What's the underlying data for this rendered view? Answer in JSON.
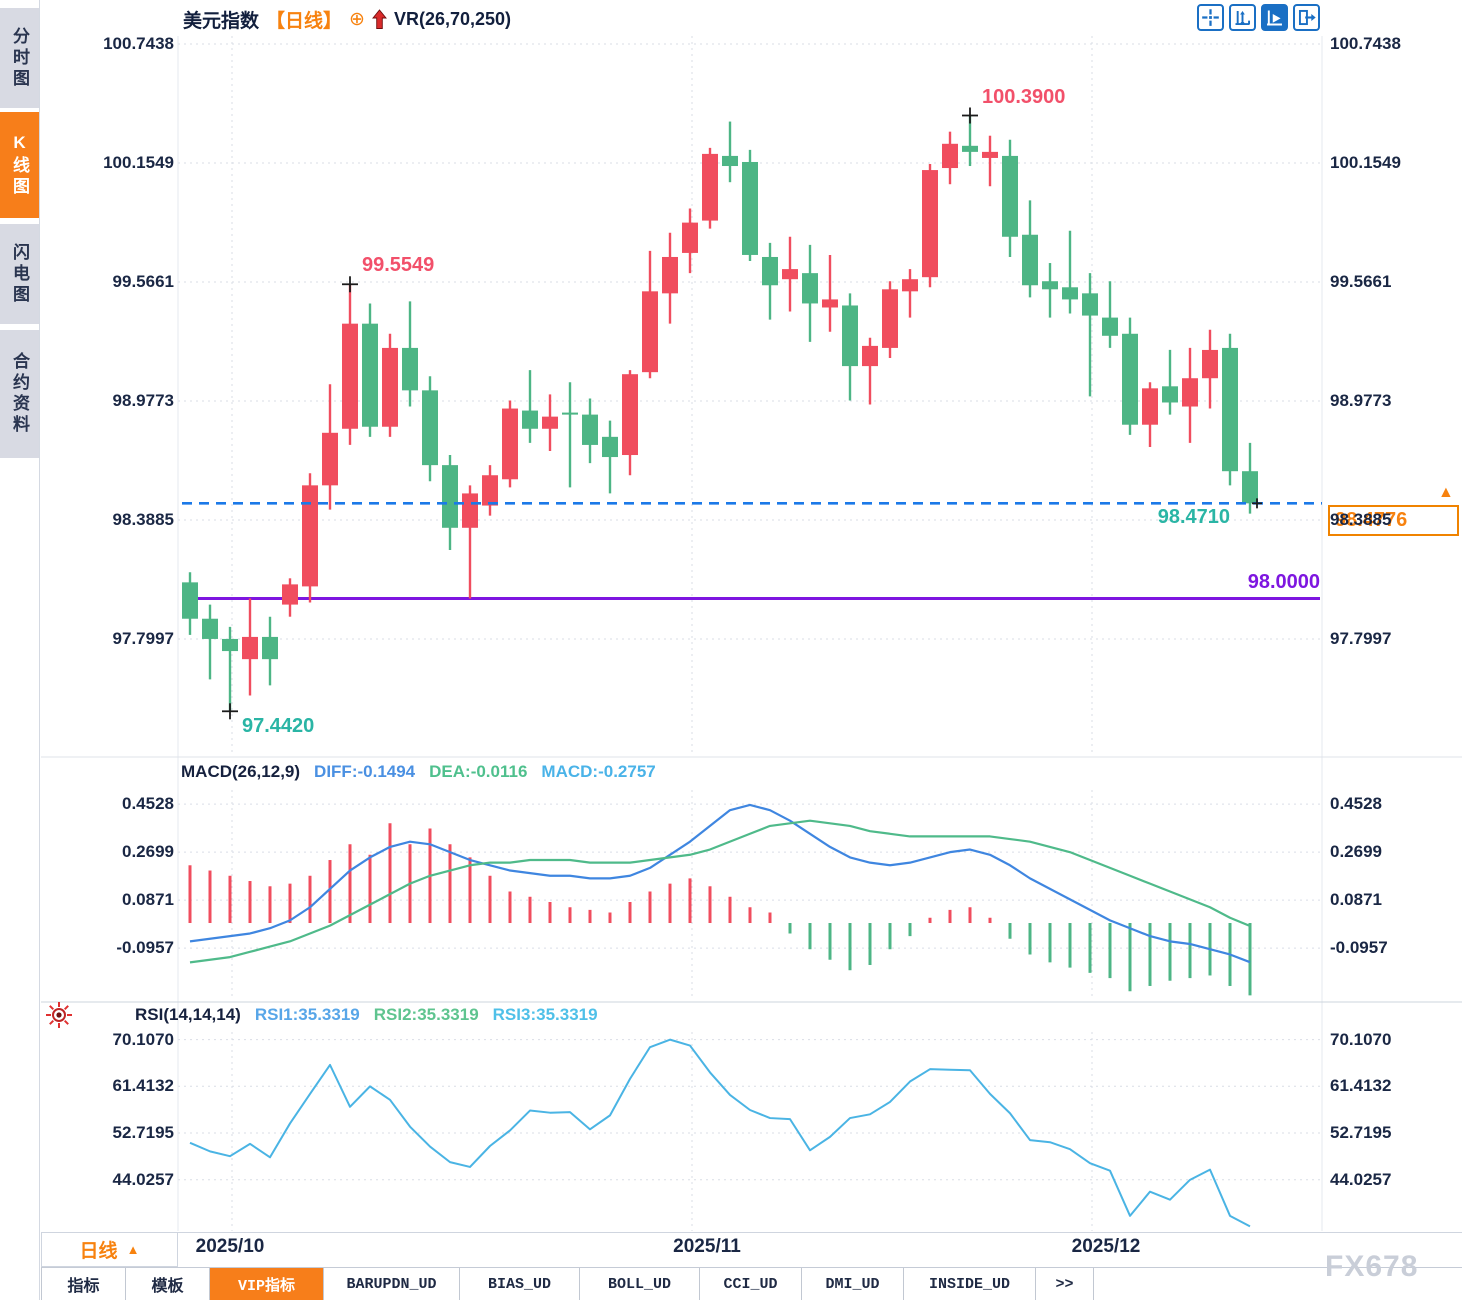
{
  "window": {
    "watermark": "FX678"
  },
  "sidebar": {
    "tabs": [
      {
        "label": "分时图",
        "active": false
      },
      {
        "label": "K线图",
        "active": true
      },
      {
        "label": "闪电图",
        "active": false
      },
      {
        "label": "合约资料",
        "active": false
      }
    ]
  },
  "header": {
    "symbol": "美元指数",
    "period": "【日线】",
    "overlay_indicator": "VR(26,70,250)"
  },
  "toolbar": {
    "icons": [
      "crosshair-move-icon",
      "axis-scale-icon",
      "pointer-axis-icon",
      "exit-panel-icon"
    ]
  },
  "current_price": {
    "value": "98.4776"
  },
  "bottom": {
    "period_label": "日线",
    "tabs": [
      {
        "label": "指标",
        "active": false
      },
      {
        "label": "模板",
        "active": false
      },
      {
        "label": "VIP指标",
        "active": true
      },
      {
        "label": "BARUPDN_UD",
        "active": false
      },
      {
        "label": "BIAS_UD",
        "active": false
      },
      {
        "label": "BOLL_UD",
        "active": false
      },
      {
        "label": "CCI_UD",
        "active": false
      },
      {
        "label": "DMI_UD",
        "active": false
      },
      {
        "label": "INSIDE_UD",
        "active": false
      },
      {
        "label": ">>",
        "active": false
      }
    ]
  },
  "chart_data": {
    "type": "candlestick",
    "title": "美元指数 日线",
    "up_means": "red rising candles, green falling candles",
    "colors": {
      "up": "#f04d5e",
      "down": "#4db585",
      "diff_line": "#3f86e0",
      "dea_line": "#4fba8a",
      "rsi_line": "#4ab4e4",
      "dashed_line": "#1b79e8",
      "support_line": "#7e16e0",
      "accent_orange": "#f7820f",
      "annotation_red": "#f2506a",
      "annotation_teal": "#2ab5a5"
    },
    "price_axis_labels": [
      "100.7438",
      "100.1549",
      "99.5661",
      "98.9773",
      "98.3885",
      "97.7997"
    ],
    "x_axis_labels": [
      "2025/10",
      "2025/11",
      "2025/12"
    ],
    "candles": [
      [
        98.08,
        98.13,
        97.82,
        97.9
      ],
      [
        97.9,
        97.97,
        97.6,
        97.8
      ],
      [
        97.8,
        97.86,
        97.442,
        97.74
      ],
      [
        97.7,
        98.0,
        97.52,
        97.81
      ],
      [
        97.81,
        97.91,
        97.57,
        97.7
      ],
      [
        97.97,
        98.1,
        97.91,
        98.07
      ],
      [
        98.06,
        98.62,
        97.98,
        98.56
      ],
      [
        98.56,
        99.06,
        98.44,
        98.82
      ],
      [
        98.84,
        99.5549,
        98.76,
        99.36
      ],
      [
        99.36,
        99.46,
        98.8,
        98.85
      ],
      [
        98.85,
        99.31,
        98.8,
        99.24
      ],
      [
        99.24,
        99.47,
        98.95,
        99.03
      ],
      [
        99.03,
        99.1,
        98.58,
        98.66
      ],
      [
        98.66,
        98.71,
        98.24,
        98.35
      ],
      [
        98.35,
        98.56,
        98.0,
        98.52
      ],
      [
        98.46,
        98.66,
        98.41,
        98.61
      ],
      [
        98.59,
        98.98,
        98.55,
        98.94
      ],
      [
        98.93,
        99.13,
        98.77,
        98.84
      ],
      [
        98.84,
        99.01,
        98.73,
        98.9
      ],
      [
        98.92,
        99.07,
        98.55,
        98.91
      ],
      [
        98.91,
        98.99,
        98.67,
        98.76
      ],
      [
        98.8,
        98.88,
        98.52,
        98.7
      ],
      [
        98.71,
        99.13,
        98.61,
        99.11
      ],
      [
        99.12,
        99.72,
        99.09,
        99.52
      ],
      [
        99.51,
        99.81,
        99.36,
        99.69
      ],
      [
        99.71,
        99.93,
        99.61,
        99.86
      ],
      [
        99.87,
        100.23,
        99.83,
        100.2
      ],
      [
        100.19,
        100.36,
        100.06,
        100.14
      ],
      [
        100.16,
        100.22,
        99.67,
        99.7
      ],
      [
        99.69,
        99.76,
        99.38,
        99.55
      ],
      [
        99.58,
        99.79,
        99.42,
        99.63
      ],
      [
        99.61,
        99.75,
        99.27,
        99.46
      ],
      [
        99.44,
        99.7,
        99.32,
        99.48
      ],
      [
        99.45,
        99.51,
        98.98,
        99.15
      ],
      [
        99.15,
        99.29,
        98.96,
        99.25
      ],
      [
        99.24,
        99.57,
        99.19,
        99.53
      ],
      [
        99.52,
        99.63,
        99.39,
        99.58
      ],
      [
        99.59,
        100.15,
        99.54,
        100.12
      ],
      [
        100.13,
        100.31,
        100.05,
        100.25
      ],
      [
        100.24,
        100.39,
        100.14,
        100.21
      ],
      [
        100.18,
        100.29,
        100.04,
        100.21
      ],
      [
        100.19,
        100.27,
        99.69,
        99.79
      ],
      [
        99.8,
        99.97,
        99.49,
        99.55
      ],
      [
        99.57,
        99.66,
        99.39,
        99.53
      ],
      [
        99.54,
        99.82,
        99.41,
        99.48
      ],
      [
        99.51,
        99.61,
        99.0,
        99.4
      ],
      [
        99.39,
        99.57,
        99.24,
        99.3
      ],
      [
        99.31,
        99.39,
        98.81,
        98.86
      ],
      [
        98.86,
        99.07,
        98.75,
        99.04
      ],
      [
        99.05,
        99.23,
        98.91,
        98.97
      ],
      [
        98.95,
        99.24,
        98.77,
        99.09
      ],
      [
        99.09,
        99.33,
        98.94,
        99.23
      ],
      [
        99.24,
        99.31,
        98.56,
        98.63
      ],
      [
        98.63,
        98.77,
        98.42,
        98.471
      ]
    ],
    "annotations": [
      {
        "text": "99.5549",
        "candle": 8,
        "anchor": "high",
        "color": "#f2506a"
      },
      {
        "text": "100.3900",
        "candle": 39,
        "anchor": "high",
        "color": "#f2506a"
      },
      {
        "text": "97.4420",
        "candle": 2,
        "anchor": "low",
        "color": "#2ab5a5"
      },
      {
        "text": "98.4710",
        "candle": 53,
        "anchor": "close",
        "color": "#2ab5a5"
      }
    ],
    "hlines": [
      {
        "label": "98.0000",
        "value": 98.0,
        "style": "solid",
        "color": "#7e16e0"
      },
      {
        "label": "98.4710",
        "value": 98.471,
        "style": "dashed",
        "color": "#1b79e8"
      }
    ],
    "macd": {
      "title": "MACD(26,12,9)",
      "diff_label": "DIFF:-0.1494",
      "dea_label": "DEA:-0.0116",
      "macd_label": "MACD:-0.2757",
      "axis_labels": [
        "0.4528",
        "0.2699",
        "0.0871",
        "-0.0957"
      ],
      "diff": [
        -0.07,
        -0.06,
        -0.05,
        -0.04,
        -0.02,
        0.01,
        0.06,
        0.13,
        0.2,
        0.25,
        0.29,
        0.31,
        0.3,
        0.27,
        0.24,
        0.22,
        0.2,
        0.19,
        0.18,
        0.18,
        0.17,
        0.17,
        0.18,
        0.21,
        0.26,
        0.31,
        0.37,
        0.43,
        0.45,
        0.43,
        0.39,
        0.34,
        0.29,
        0.25,
        0.23,
        0.22,
        0.23,
        0.25,
        0.27,
        0.28,
        0.26,
        0.22,
        0.17,
        0.13,
        0.09,
        0.05,
        0.01,
        -0.02,
        -0.05,
        -0.07,
        -0.08,
        -0.1,
        -0.12,
        -0.1494
      ],
      "dea": [
        -0.15,
        -0.14,
        -0.13,
        -0.11,
        -0.09,
        -0.07,
        -0.04,
        -0.01,
        0.03,
        0.07,
        0.11,
        0.15,
        0.18,
        0.2,
        0.22,
        0.23,
        0.23,
        0.24,
        0.24,
        0.24,
        0.23,
        0.23,
        0.23,
        0.24,
        0.25,
        0.26,
        0.28,
        0.31,
        0.34,
        0.37,
        0.38,
        0.39,
        0.38,
        0.37,
        0.35,
        0.34,
        0.33,
        0.33,
        0.33,
        0.33,
        0.33,
        0.32,
        0.31,
        0.29,
        0.27,
        0.24,
        0.21,
        0.18,
        0.15,
        0.12,
        0.09,
        0.06,
        0.02,
        -0.0116
      ],
      "hist": [
        0.22,
        0.2,
        0.18,
        0.16,
        0.14,
        0.15,
        0.18,
        0.24,
        0.3,
        0.26,
        0.38,
        0.3,
        0.36,
        0.3,
        0.25,
        0.18,
        0.12,
        0.1,
        0.08,
        0.06,
        0.05,
        0.04,
        0.08,
        0.12,
        0.15,
        0.17,
        0.14,
        0.1,
        0.06,
        0.04,
        -0.04,
        -0.1,
        -0.14,
        -0.18,
        -0.16,
        -0.1,
        -0.05,
        0.02,
        0.05,
        0.06,
        0.02,
        -0.06,
        -0.12,
        -0.15,
        -0.17,
        -0.19,
        -0.21,
        -0.26,
        -0.24,
        -0.22,
        -0.21,
        -0.2,
        -0.24,
        -0.2757
      ]
    },
    "rsi": {
      "title": "RSI(14,14,14)",
      "labels": [
        "RSI1:35.3319",
        "RSI2:35.3319",
        "RSI3:35.3319"
      ],
      "axis_labels": [
        "70.1070",
        "61.4132",
        "52.7195",
        "44.0257"
      ],
      "values": [
        50.9,
        49.3,
        48.4,
        50.7,
        48.2,
        54.5,
        60.0,
        65.4,
        57.6,
        61.4,
        58.9,
        53.9,
        50.2,
        47.3,
        46.4,
        50.3,
        53.2,
        56.9,
        56.5,
        56.6,
        53.4,
        56.0,
        62.8,
        68.7,
        70.1,
        69.0,
        64.0,
        59.8,
        57.0,
        55.5,
        55.3,
        49.5,
        52.0,
        55.5,
        56.2,
        58.5,
        62.3,
        64.6,
        64.5,
        64.4,
        60.0,
        56.4,
        51.4,
        51.0,
        49.7,
        47.1,
        45.7,
        37.3,
        41.8,
        40.3,
        44.0,
        45.9,
        37.3,
        35.33
      ]
    }
  }
}
